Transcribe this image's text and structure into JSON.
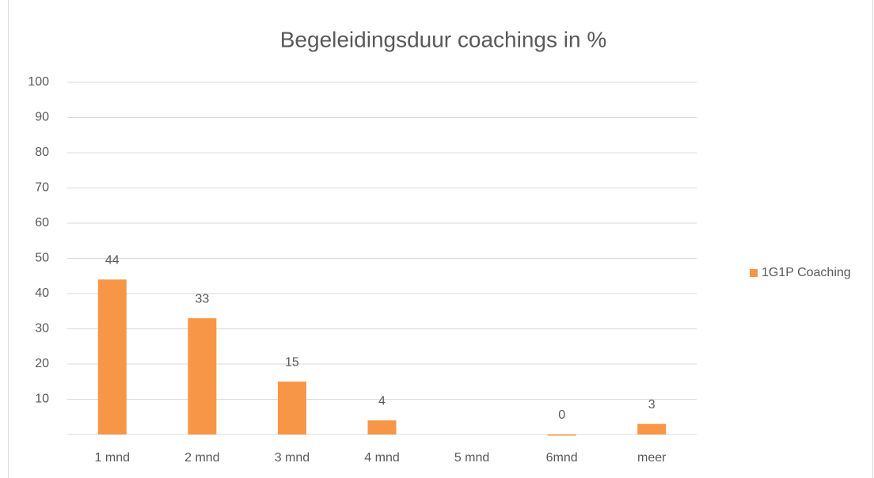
{
  "chart_data": {
    "type": "bar",
    "title": "Begeleidingsduur coachings in %",
    "categories": [
      "1 mnd",
      "2 mnd",
      "3 mnd",
      "4 mnd",
      "5 mnd",
      "6mnd",
      "meer"
    ],
    "series": [
      {
        "name": "1G1P Coaching",
        "color": "#f79646",
        "values": [
          44,
          33,
          15,
          4,
          null,
          0,
          3
        ]
      }
    ],
    "ylim": [
      0,
      100
    ],
    "yticks": [
      10,
      20,
      30,
      40,
      50,
      60,
      70,
      80,
      90,
      100
    ],
    "grid": true,
    "legend": "right"
  }
}
